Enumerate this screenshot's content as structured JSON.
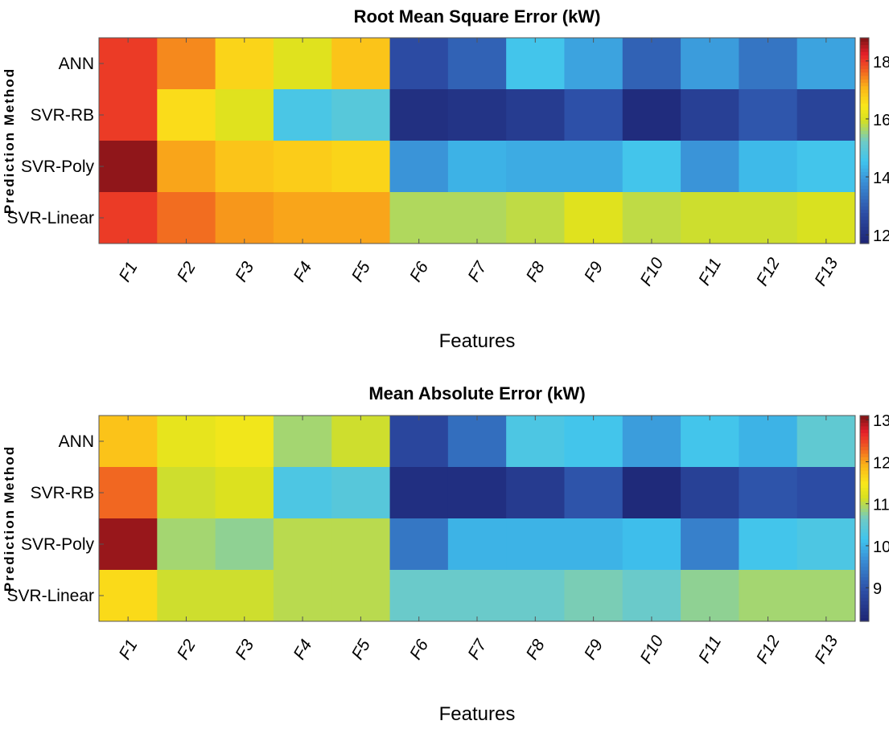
{
  "chart_data": [
    {
      "type": "heatmap",
      "title": "Root Mean Square Error (kW)",
      "xlabel": "Features",
      "ylabel": "Prediction Method",
      "x": [
        "F1",
        "F2",
        "F3",
        "F4",
        "F5",
        "F6",
        "F7",
        "F8",
        "F9",
        "F10",
        "F11",
        "F12",
        "F13"
      ],
      "y": [
        "ANN",
        "SVR-RB",
        "SVR-Poly",
        "SVR-Linear"
      ],
      "values": [
        [
          18.0,
          17.4,
          16.7,
          16.1,
          16.9,
          12.7,
          13.1,
          14.6,
          14.1,
          13.1,
          14.0,
          13.4,
          14.1
        ],
        [
          18.0,
          16.6,
          16.1,
          14.7,
          14.9,
          12.0,
          12.1,
          12.3,
          12.8,
          11.9,
          12.4,
          12.9,
          12.5
        ],
        [
          18.7,
          17.2,
          16.9,
          16.8,
          16.7,
          13.9,
          14.3,
          14.2,
          14.2,
          14.6,
          13.9,
          14.4,
          14.6
        ],
        [
          18.0,
          17.6,
          17.3,
          17.2,
          17.2,
          15.7,
          15.7,
          15.8,
          16.1,
          15.8,
          15.9,
          15.9,
          16.0
        ]
      ],
      "colorbar": {
        "range": [
          11.7,
          18.8
        ],
        "ticks": [
          "12",
          "14",
          "16",
          "18"
        ]
      }
    },
    {
      "type": "heatmap",
      "title": "Mean Absolute Error (kW)",
      "xlabel": "Features",
      "ylabel": "Prediction Method",
      "x": [
        "F1",
        "F2",
        "F3",
        "F4",
        "F5",
        "F6",
        "F7",
        "F8",
        "F9",
        "F10",
        "F11",
        "F12",
        "F13"
      ],
      "y": [
        "ANN",
        "SVR-RB",
        "SVR-Poly",
        "SVR-Linear"
      ],
      "values": [
        [
          11.8,
          11.3,
          11.4,
          10.9,
          11.1,
          8.8,
          9.3,
          10.3,
          10.2,
          9.8,
          10.2,
          10.0,
          10.5
        ],
        [
          12.3,
          11.1,
          11.2,
          10.3,
          10.4,
          8.4,
          8.4,
          8.6,
          9.0,
          8.3,
          8.7,
          9.0,
          8.9
        ],
        [
          13.0,
          10.9,
          10.8,
          11.0,
          11.0,
          9.4,
          10.0,
          10.0,
          10.0,
          10.1,
          9.5,
          10.2,
          10.3
        ],
        [
          11.6,
          11.1,
          11.1,
          11.0,
          11.0,
          10.6,
          10.6,
          10.6,
          10.7,
          10.6,
          10.8,
          10.9,
          10.9
        ]
      ],
      "colorbar": {
        "range": [
          8.2,
          13.1
        ],
        "ticks": [
          "9",
          "10",
          "11",
          "12",
          "13"
        ]
      }
    }
  ]
}
